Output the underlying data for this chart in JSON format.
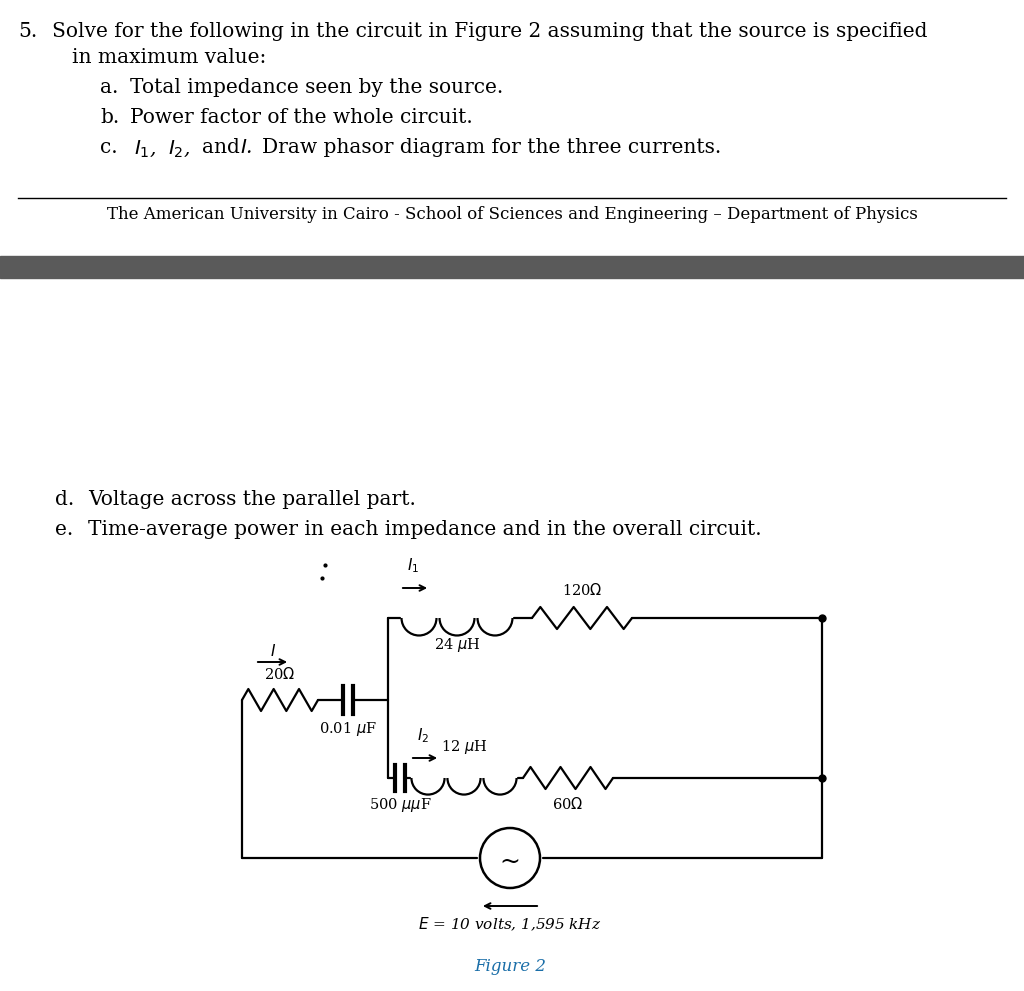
{
  "bg_color": "#ffffff",
  "dark_bar_color": "#5a5a5a",
  "text_color": "#000000",
  "fig_caption_color": "#1a6ea8",
  "separator_text": "The American University in Cairo - School of Sciences and Engineering – Department of Physics",
  "figure_caption": "Figure 2",
  "source_label": "E = 10 volts, 1,595 kHz",
  "fs_main": 14.5,
  "fs_univ": 12.0,
  "fs_circuit": 10.5,
  "fs_caption": 12.0
}
